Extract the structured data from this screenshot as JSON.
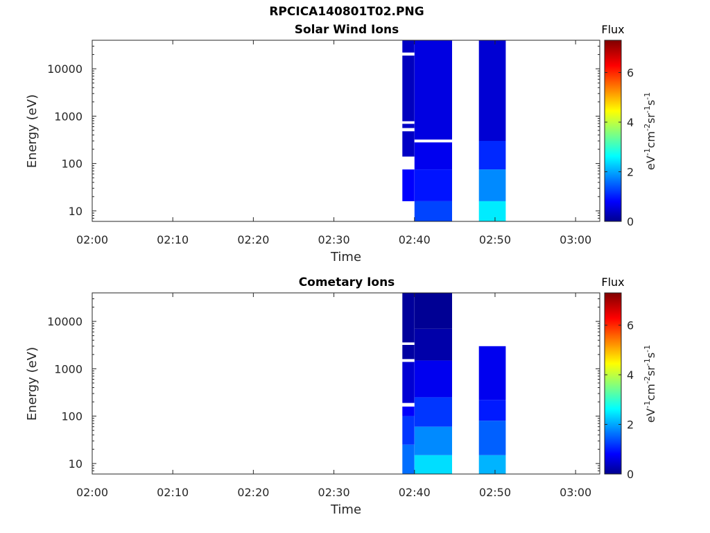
{
  "figure": {
    "title": "RPCICA140801T02.PNG"
  },
  "colormap": {
    "name": "jet",
    "no_data_color": "#ffffff"
  },
  "chart_data": [
    {
      "type": "heatmap",
      "title": "Solar Wind Ions",
      "xlabel": "Time",
      "ylabel": "Energy (eV)",
      "x_ticks": [
        "02:00",
        "02:10",
        "02:20",
        "02:30",
        "02:40",
        "02:50",
        "03:00"
      ],
      "xlim": [
        "02:00",
        "03:03"
      ],
      "y_scale": "log",
      "y_ticks": [
        "10",
        "100",
        "1000",
        "10000"
      ],
      "ylim": [
        6,
        40000
      ],
      "colorbar": {
        "title": "Flux",
        "label": "eV-1cm-2sr-1s-1",
        "range": [
          0,
          7.3
        ],
        "ticks": [
          "0",
          "2",
          "4",
          "6"
        ]
      },
      "grid": false,
      "bands": [
        {
          "start": "02:38:30",
          "end": "02:40:00",
          "cells": [
            {
              "e_lo": 16,
              "e_hi": 75,
              "flux": 0.9
            },
            {
              "e_lo": 75,
              "e_hi": 140,
              "flux": null
            },
            {
              "e_lo": 140,
              "e_hi": 480,
              "flux": 0.5
            },
            {
              "e_lo": 480,
              "e_hi": 560,
              "flux": null
            },
            {
              "e_lo": 560,
              "e_hi": 690,
              "flux": 0.5
            },
            {
              "e_lo": 690,
              "e_hi": 780,
              "flux": null
            },
            {
              "e_lo": 780,
              "e_hi": 19000,
              "flux": 0.45
            },
            {
              "e_lo": 19000,
              "e_hi": 22000,
              "flux": null
            },
            {
              "e_lo": 22000,
              "e_hi": 40000,
              "flux": 0.5
            }
          ]
        },
        {
          "start": "02:40:00",
          "end": "02:44:40",
          "cells": [
            {
              "e_lo": 6,
              "e_hi": 16,
              "flux": 1.4
            },
            {
              "e_lo": 16,
              "e_hi": 75,
              "flux": 1.05
            },
            {
              "e_lo": 75,
              "e_hi": 280,
              "flux": 0.8
            },
            {
              "e_lo": 280,
              "e_hi": 320,
              "flux": null
            },
            {
              "e_lo": 320,
              "e_hi": 40000,
              "flux": 0.7
            }
          ]
        },
        {
          "start": "02:48:00",
          "end": "02:51:20",
          "cells": [
            {
              "e_lo": 6,
              "e_hi": 16,
              "flux": 2.6
            },
            {
              "e_lo": 16,
              "e_hi": 75,
              "flux": 1.9
            },
            {
              "e_lo": 75,
              "e_hi": 300,
              "flux": 1.2
            },
            {
              "e_lo": 300,
              "e_hi": 40000,
              "flux": 0.6
            }
          ]
        }
      ]
    },
    {
      "type": "heatmap",
      "title": "Cometary Ions",
      "xlabel": "Time",
      "ylabel": "Energy (eV)",
      "x_ticks": [
        "02:00",
        "02:10",
        "02:20",
        "02:30",
        "02:40",
        "02:50",
        "03:00"
      ],
      "xlim": [
        "02:00",
        "03:03"
      ],
      "y_scale": "log",
      "y_ticks": [
        "10",
        "100",
        "1000",
        "10000"
      ],
      "ylim": [
        6,
        40000
      ],
      "colorbar": {
        "title": "Flux",
        "label": "eV-1cm-2sr-1s-1",
        "range": [
          0,
          7.3
        ],
        "ticks": [
          "0",
          "2",
          "4",
          "6"
        ]
      },
      "grid": false,
      "bands": [
        {
          "start": "02:38:30",
          "end": "02:40:00",
          "cells": [
            {
              "e_lo": 6,
              "e_hi": 25,
              "flux": 1.7
            },
            {
              "e_lo": 25,
              "e_hi": 100,
              "flux": 1.3
            },
            {
              "e_lo": 100,
              "e_hi": 160,
              "flux": 0.9
            },
            {
              "e_lo": 160,
              "e_hi": 190,
              "flux": null
            },
            {
              "e_lo": 190,
              "e_hi": 1400,
              "flux": 0.6
            },
            {
              "e_lo": 1400,
              "e_hi": 1600,
              "flux": null
            },
            {
              "e_lo": 1600,
              "e_hi": 3200,
              "flux": 0.25
            },
            {
              "e_lo": 3200,
              "e_hi": 3600,
              "flux": null
            },
            {
              "e_lo": 3600,
              "e_hi": 40000,
              "flux": 0.2
            }
          ]
        },
        {
          "start": "02:40:00",
          "end": "02:44:40",
          "cells": [
            {
              "e_lo": 6,
              "e_hi": 15,
              "flux": 2.5
            },
            {
              "e_lo": 15,
              "e_hi": 60,
              "flux": 1.9
            },
            {
              "e_lo": 60,
              "e_hi": 250,
              "flux": 1.3
            },
            {
              "e_lo": 250,
              "e_hi": 1500,
              "flux": 0.8
            },
            {
              "e_lo": 1500,
              "e_hi": 7000,
              "flux": 0.3
            },
            {
              "e_lo": 7000,
              "e_hi": 40000,
              "flux": 0.15
            }
          ]
        },
        {
          "start": "02:48:00",
          "end": "02:51:20",
          "cells": [
            {
              "e_lo": 6,
              "e_hi": 15,
              "flux": 2.2
            },
            {
              "e_lo": 15,
              "e_hi": 80,
              "flux": 1.6
            },
            {
              "e_lo": 80,
              "e_hi": 220,
              "flux": 1.1
            },
            {
              "e_lo": 220,
              "e_hi": 3000,
              "flux": 0.8
            }
          ]
        }
      ]
    }
  ]
}
